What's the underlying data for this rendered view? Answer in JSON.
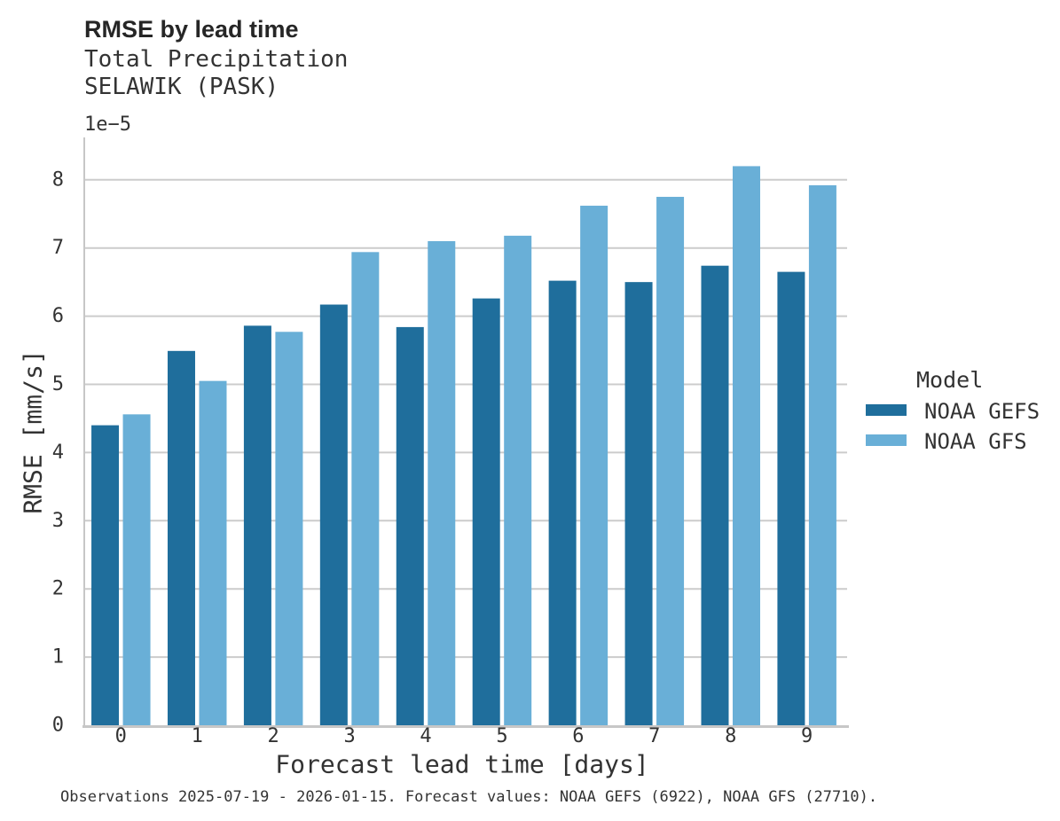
{
  "title": "RMSE by lead time",
  "subtitle_line1": "Total Precipitation",
  "subtitle_line2": "SELAWIK (PASK)",
  "footer": "Observations 2025-07-19 - 2026-01-15. Forecast values: NOAA GEFS (6922), NOAA GFS (27710).",
  "legend": {
    "title": "Model",
    "entries": [
      {
        "label": "NOAA GEFS",
        "color": "#1f6e9c"
      },
      {
        "label": "NOAA GFS",
        "color": "#69afd7"
      }
    ]
  },
  "colors": {
    "bar_dark": "#1f6e9c",
    "bar_light": "#69afd7",
    "gridline": "#cccccc",
    "spine": "#c7c7c7",
    "text": "#333333"
  },
  "chart_data": {
    "type": "bar",
    "title": "RMSE by lead time",
    "subtitle": [
      "Total Precipitation",
      "SELAWIK (PASK)"
    ],
    "xlabel": "Forecast lead time [days]",
    "ylabel": "RMSE [mm/s]",
    "offset_text": "1e−5",
    "unit_multiplier": "1e-5",
    "categories": [
      "0",
      "1",
      "2",
      "3",
      "4",
      "5",
      "6",
      "7",
      "8",
      "9"
    ],
    "series": [
      {
        "name": "NOAA GEFS",
        "color": "#1f6e9c",
        "values": [
          4.4,
          5.49,
          5.86,
          6.17,
          5.84,
          6.26,
          6.52,
          6.5,
          6.74,
          6.65
        ]
      },
      {
        "name": "NOAA GFS",
        "color": "#69afd7",
        "values": [
          4.56,
          5.05,
          5.77,
          6.94,
          7.1,
          7.18,
          7.62,
          7.75,
          8.2,
          7.92
        ]
      }
    ],
    "y_ticks": [
      0,
      1,
      2,
      3,
      4,
      5,
      6,
      7,
      8
    ],
    "ylim": [
      0,
      8.62
    ],
    "grid": "horizontal",
    "legend_position": "right",
    "legend_title": "Model"
  }
}
